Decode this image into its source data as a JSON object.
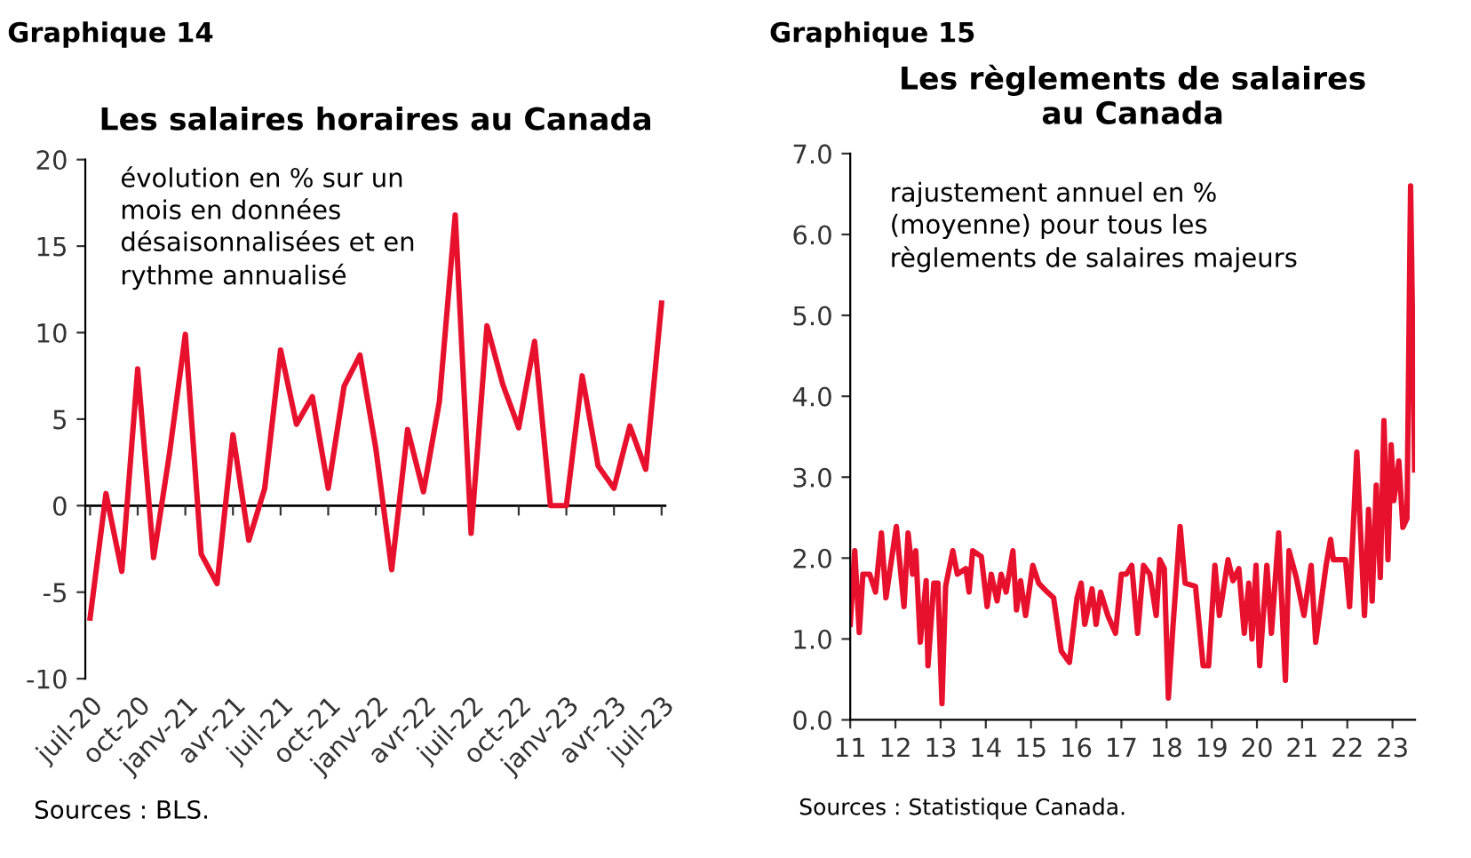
{
  "chart_data": [
    {
      "type": "line",
      "title": "Les salaires horaires au Canada",
      "annotations": [
        "Graphique 14",
        "évolution en % sur un\nmois en données\ndésaisonnalisées et en\nrythme annualisé",
        "Sources : BLS."
      ],
      "categories": [
        "juil-20",
        null,
        null,
        "oct-20",
        null,
        null,
        "janv-21",
        null,
        null,
        "avr-21",
        null,
        null,
        "juil-21",
        null,
        null,
        "oct-21",
        null,
        null,
        "janv-22",
        null,
        null,
        "avr-22",
        null,
        null,
        "juil-22",
        null,
        null,
        "oct-22",
        null,
        null,
        "janv-23",
        null,
        null,
        "avr-23",
        null,
        null,
        "juil-23"
      ],
      "series": [
        {
          "color": "#e8112d",
          "values": [
            -6.5,
            0.7,
            -3.8,
            7.9,
            -3.0,
            3.0,
            9.9,
            -2.8,
            -4.5,
            4.1,
            -2.0,
            1.0,
            9.0,
            4.7,
            6.3,
            1.0,
            6.9,
            8.7,
            3.3,
            -3.7,
            4.4,
            0.8,
            6.0,
            16.8,
            -1.6,
            10.4,
            7.0,
            4.5,
            9.5,
            0.0,
            0.0,
            7.5,
            2.3,
            1.0,
            4.6,
            2.1,
            11.7
          ]
        }
      ],
      "ylim": [
        -10,
        20
      ],
      "yticks": [
        -10,
        -5,
        0,
        5,
        10,
        15,
        20
      ],
      "ref_lines": [
        {
          "axis": "y",
          "value": 0,
          "color": "#000000"
        }
      ],
      "grid": false,
      "legend": false,
      "marker": "none",
      "line_style": "solid"
    },
    {
      "type": "line",
      "title": "Les règlements de salaires\nau Canada",
      "annotations": [
        "Graphique 15",
        "rajustement annuel en %\n(moyenne) pour tous les\nrèglements de salaires majeurs",
        "Sources : Statistique Canada."
      ],
      "series": [
        {
          "color": "#e8112d",
          "x": [
            11.0,
            11.1,
            11.2,
            11.28,
            11.43,
            11.56,
            11.69,
            11.79,
            12.02,
            12.19,
            12.28,
            12.38,
            12.45,
            12.55,
            12.68,
            12.72,
            12.85,
            12.94,
            13.03,
            13.11,
            13.27,
            13.37,
            13.56,
            13.63,
            13.71,
            13.9,
            14.03,
            14.12,
            14.25,
            14.34,
            14.45,
            14.6,
            14.68,
            14.77,
            14.88,
            15.04,
            15.17,
            15.36,
            15.5,
            15.67,
            15.76,
            15.85,
            16.02,
            16.11,
            16.19,
            16.35,
            16.44,
            16.54,
            16.7,
            16.87,
            17.0,
            17.11,
            17.23,
            17.36,
            17.49,
            17.63,
            17.77,
            17.85,
            17.95,
            18.04,
            18.14,
            18.3,
            18.41,
            18.64,
            18.81,
            18.93,
            19.07,
            19.17,
            19.36,
            19.47,
            19.6,
            19.72,
            19.82,
            19.89,
            19.98,
            20.06,
            20.22,
            20.32,
            20.48,
            20.63,
            20.71,
            20.87,
            21.04,
            21.2,
            21.3,
            21.53,
            21.63,
            21.69,
            21.96,
            22.05,
            22.21,
            22.38,
            22.47,
            22.55,
            22.64,
            22.73,
            22.81,
            22.9,
            22.97,
            23.03,
            23.14,
            23.23,
            23.32,
            23.4,
            23.49
          ],
          "values": [
            1.18,
            2.09,
            1.08,
            1.8,
            1.8,
            1.58,
            2.31,
            1.51,
            2.39,
            1.4,
            2.31,
            1.8,
            2.09,
            0.96,
            1.72,
            0.67,
            1.69,
            1.69,
            0.2,
            1.65,
            2.09,
            1.8,
            1.87,
            1.58,
            2.09,
            2.02,
            1.4,
            1.8,
            1.47,
            1.8,
            1.58,
            2.09,
            1.36,
            1.72,
            1.29,
            1.91,
            1.69,
            1.58,
            1.51,
            0.85,
            0.78,
            0.71,
            1.51,
            1.69,
            1.18,
            1.62,
            1.18,
            1.58,
            1.29,
            1.07,
            1.8,
            1.8,
            1.91,
            1.07,
            1.91,
            1.8,
            1.29,
            1.98,
            1.87,
            0.27,
            1.14,
            2.39,
            1.69,
            1.65,
            0.67,
            0.67,
            1.91,
            1.29,
            1.98,
            1.72,
            1.87,
            1.07,
            1.69,
            1.0,
            1.91,
            0.67,
            1.91,
            1.07,
            2.31,
            0.49,
            2.09,
            1.76,
            1.29,
            1.91,
            0.96,
            1.91,
            2.23,
            1.98,
            1.98,
            1.4,
            3.31,
            1.29,
            2.6,
            1.47,
            2.9,
            1.76,
            3.7,
            1.98,
            3.4,
            2.71,
            3.2,
            2.38,
            2.49,
            6.6,
            3.09
          ]
        }
      ],
      "xlim": [
        11,
        23.5
      ],
      "xticks": [
        11,
        12,
        13,
        14,
        15,
        16,
        17,
        18,
        19,
        20,
        21,
        22,
        23
      ],
      "ylim": [
        0,
        7
      ],
      "yticks": [
        {
          "value": 0,
          "label": "0.0"
        },
        {
          "value": 1,
          "label": "1.0"
        },
        {
          "value": 2,
          "label": "2.0"
        },
        {
          "value": 3,
          "label": "3.0"
        },
        {
          "value": 4,
          "label": "4.0"
        },
        {
          "value": 5,
          "label": "5.0"
        },
        {
          "value": 6,
          "label": "6.0"
        },
        {
          "value": 7,
          "label": "7.0"
        }
      ],
      "grid": false,
      "legend": false,
      "marker": "none",
      "line_style": "solid"
    }
  ]
}
